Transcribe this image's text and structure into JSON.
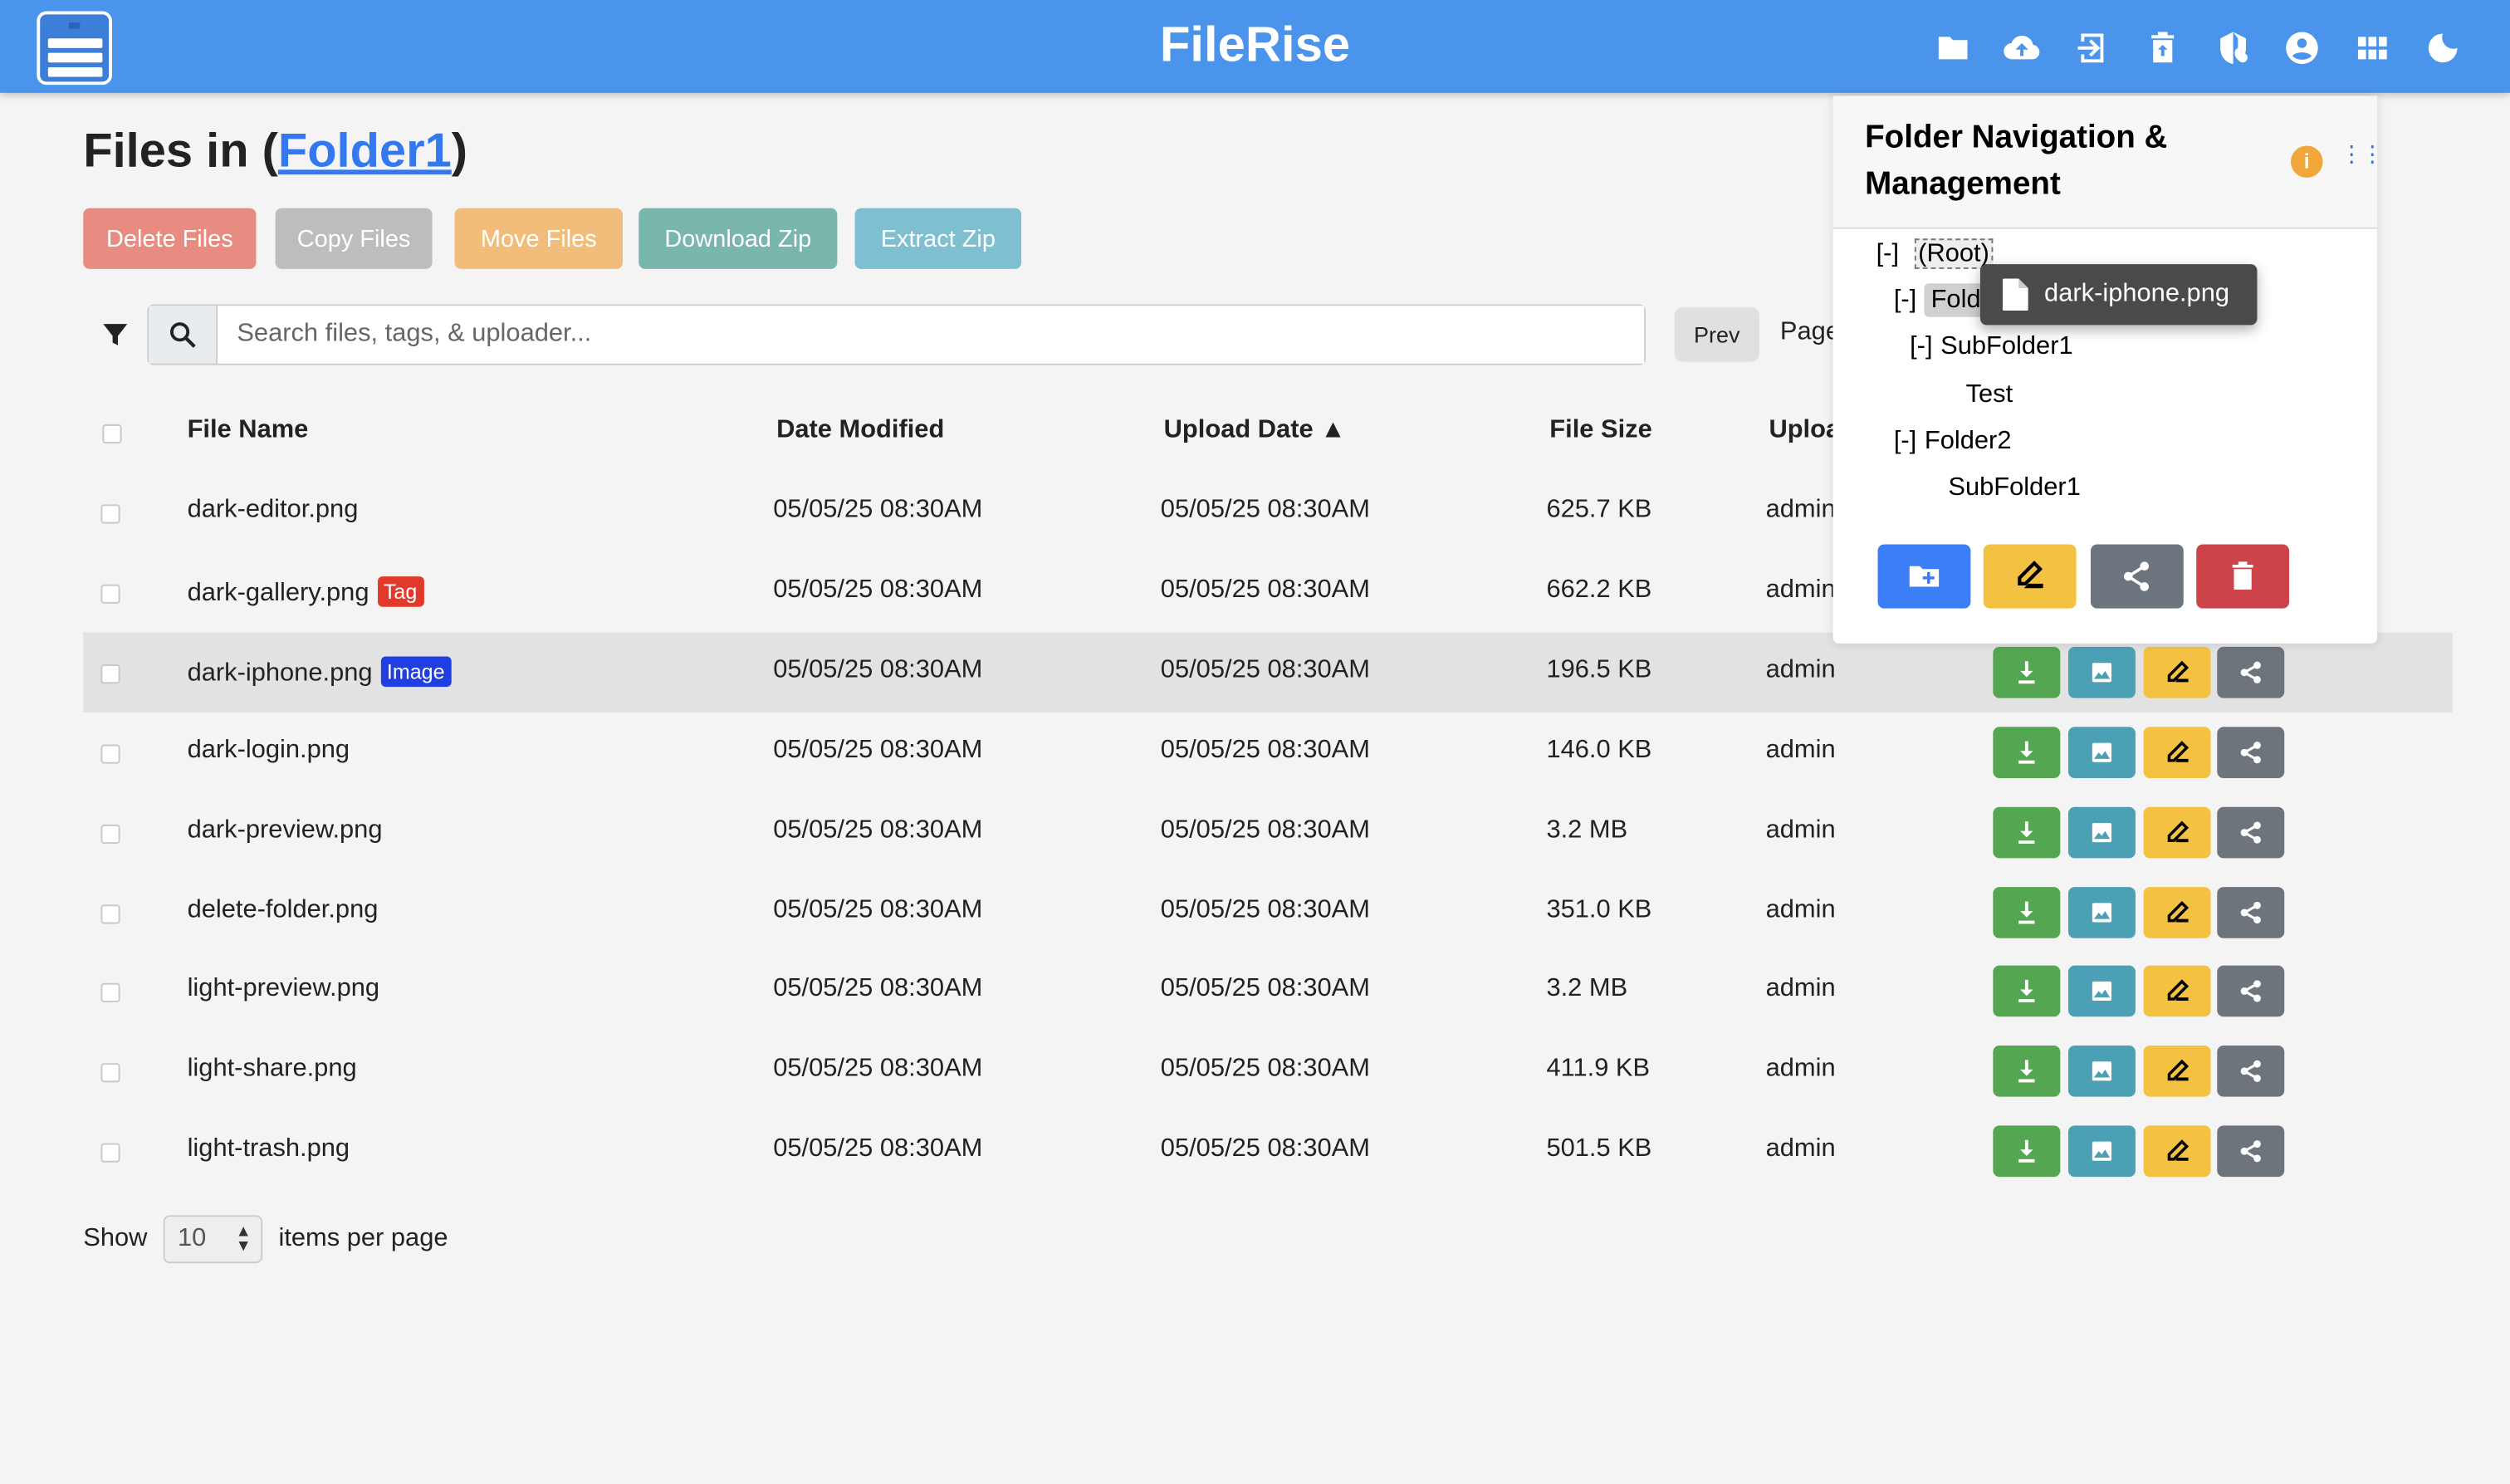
{
  "header": {
    "title": "FileRise",
    "icons": [
      "folder-icon",
      "cloud-upload-icon",
      "login-icon",
      "restore-trash-icon",
      "admin-shield-icon",
      "user-account-icon",
      "apps-grid-icon",
      "dark-mode-moon-icon"
    ]
  },
  "main": {
    "title_prefix": "Files in (",
    "folder": "Folder1",
    "title_suffix": ")",
    "actions": [
      {
        "label": "Delete Files",
        "color": "#e88c82"
      },
      {
        "label": "Copy Files",
        "color": "#bdbdbd"
      },
      {
        "label": "Move Files",
        "color": "#f2bd7b"
      },
      {
        "label": "Download Zip",
        "color": "#79b6ab"
      },
      {
        "label": "Extract Zip",
        "color": "#7fbfd2"
      }
    ],
    "search": {
      "placeholder": "Search files, tags, & uploader...",
      "value": ""
    },
    "pagination": {
      "prev": "Prev",
      "page_label": "Page"
    },
    "columns": [
      "File Name",
      "Date Modified",
      "Upload Date ▲",
      "File Size",
      "Uploader"
    ],
    "rows": [
      {
        "name": "dark-editor.png",
        "modified": "05/05/25 08:30AM",
        "uploaded": "05/05/25 08:30AM",
        "size": "625.7 KB",
        "uploader": "admin"
      },
      {
        "name": "dark-gallery.png",
        "tag": "Tag",
        "tag_color": "#e23a2a",
        "modified": "05/05/25 08:30AM",
        "uploaded": "05/05/25 08:30AM",
        "size": "662.2 KB",
        "uploader": "admin"
      },
      {
        "name": "dark-iphone.png",
        "tag": "Image",
        "tag_color": "#1f3fe0",
        "modified": "05/05/25 08:30AM",
        "uploaded": "05/05/25 08:30AM",
        "size": "196.5 KB",
        "uploader": "admin",
        "highlighted": true
      },
      {
        "name": "dark-login.png",
        "modified": "05/05/25 08:30AM",
        "uploaded": "05/05/25 08:30AM",
        "size": "146.0 KB",
        "uploader": "admin"
      },
      {
        "name": "dark-preview.png",
        "modified": "05/05/25 08:30AM",
        "uploaded": "05/05/25 08:30AM",
        "size": "3.2 MB",
        "uploader": "admin"
      },
      {
        "name": "delete-folder.png",
        "modified": "05/05/25 08:30AM",
        "uploaded": "05/05/25 08:30AM",
        "size": "351.0 KB",
        "uploader": "admin"
      },
      {
        "name": "light-preview.png",
        "modified": "05/05/25 08:30AM",
        "uploaded": "05/05/25 08:30AM",
        "size": "3.2 MB",
        "uploader": "admin"
      },
      {
        "name": "light-share.png",
        "modified": "05/05/25 08:30AM",
        "uploaded": "05/05/25 08:30AM",
        "size": "411.9 KB",
        "uploader": "admin"
      },
      {
        "name": "light-trash.png",
        "modified": "05/05/25 08:30AM",
        "uploaded": "05/05/25 08:30AM",
        "size": "501.5 KB",
        "uploader": "admin"
      }
    ],
    "row_action_colors": {
      "download": "#54a651",
      "preview": "#4ca0b6",
      "rename": "#f4c242",
      "share": "#6e747c"
    },
    "footer": {
      "show": "Show",
      "per_page": "10",
      "items": "items per page"
    }
  },
  "folder_panel": {
    "title": "Folder Navigation & Management",
    "info": "i",
    "tree": [
      {
        "toggle": "[-]",
        "label": "(Root)"
      },
      {
        "toggle": "[-]",
        "label": "Folder1",
        "selected": true
      },
      {
        "toggle": "[-]",
        "label": "SubFolder1"
      },
      {
        "toggle": "",
        "label": "Test"
      },
      {
        "toggle": "[-]",
        "label": "Folder2"
      },
      {
        "toggle": "",
        "label": "SubFolder1"
      }
    ],
    "buttons": [
      {
        "icon": "create-folder-icon",
        "color": "#3b7ef5"
      },
      {
        "icon": "rename-icon",
        "color": "#f4c242"
      },
      {
        "icon": "share-icon",
        "color": "#6c757d"
      },
      {
        "icon": "delete-icon",
        "color": "#cc4449"
      }
    ]
  },
  "drag_tooltip": {
    "label": "dark-iphone.png"
  }
}
